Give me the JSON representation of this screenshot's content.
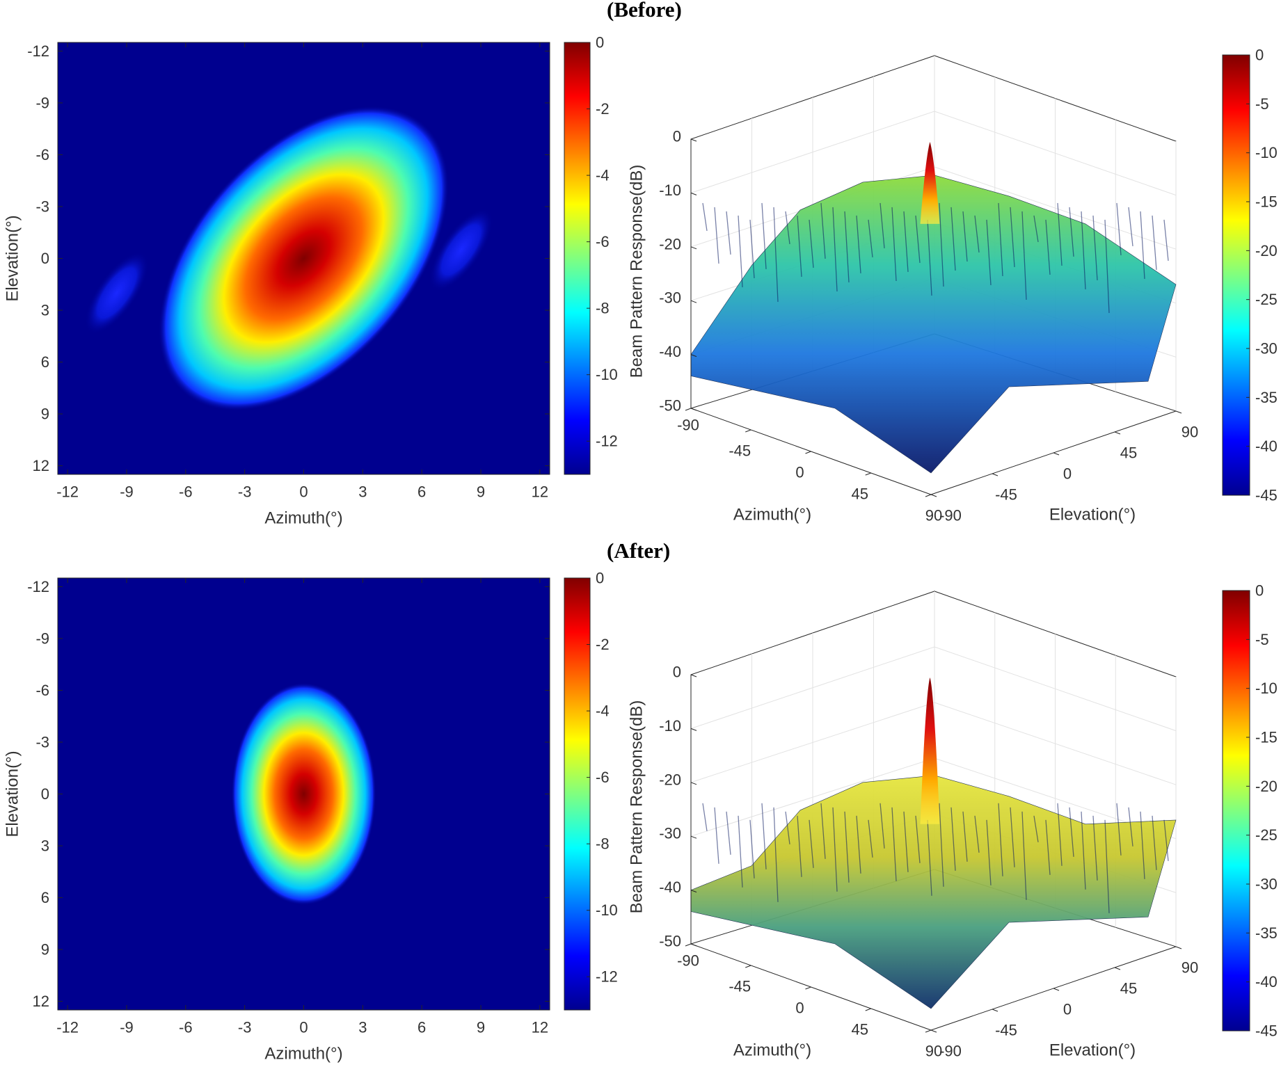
{
  "panels": [
    {
      "title": "(Before)",
      "heatmap": {
        "xlabel": "Azimuth(°)",
        "ylabel": "Elevation(°)",
        "xticks": [
          "-12",
          "-9",
          "-6",
          "-3",
          "0",
          "3",
          "6",
          "9",
          "12"
        ],
        "yticks": [
          "-12",
          "-9",
          "-6",
          "-3",
          "0",
          "3",
          "6",
          "9",
          "12"
        ],
        "colorbar_ticks": [
          "0",
          "-2",
          "-4",
          "-6",
          "-8",
          "-10",
          "-12"
        ]
      },
      "surface": {
        "xlabel": "Azimuth(°)",
        "ylabel": "Elevation(°)",
        "zlabel": "Beam Pattern Response(dB)",
        "xticks": [
          "-90",
          "-45",
          "0",
          "45",
          "90"
        ],
        "yticks": [
          "-90",
          "-45",
          "0",
          "45",
          "90"
        ],
        "zticks": [
          "0",
          "-10",
          "-20",
          "-30",
          "-40",
          "-50"
        ],
        "colorbar_ticks": [
          "0",
          "-5",
          "-10",
          "-15",
          "-20",
          "-25",
          "-30",
          "-35",
          "-40",
          "-45"
        ]
      }
    },
    {
      "title": "(After)",
      "heatmap": {
        "xlabel": "Azimuth(°)",
        "ylabel": "Elevation(°)",
        "xticks": [
          "-12",
          "-9",
          "-6",
          "-3",
          "0",
          "3",
          "6",
          "9",
          "12"
        ],
        "yticks": [
          "-12",
          "-9",
          "-6",
          "-3",
          "0",
          "3",
          "6",
          "9",
          "12"
        ],
        "colorbar_ticks": [
          "0",
          "-2",
          "-4",
          "-6",
          "-8",
          "-10",
          "-12"
        ]
      },
      "surface": {
        "xlabel": "Azimuth(°)",
        "ylabel": "Elevation(°)",
        "zlabel": "Beam Pattern Response(dB)",
        "xticks": [
          "-90",
          "-45",
          "0",
          "45",
          "90"
        ],
        "yticks": [
          "-90",
          "-45",
          "0",
          "45",
          "90"
        ],
        "zticks": [
          "0",
          "-10",
          "-20",
          "-30",
          "-40",
          "-50"
        ],
        "colorbar_ticks": [
          "0",
          "-5",
          "-10",
          "-15",
          "-20",
          "-25",
          "-30",
          "-35",
          "-40",
          "-45"
        ]
      }
    }
  ],
  "chart_data": [
    {
      "type": "heatmap",
      "colormap": "jet",
      "xlabel": "Azimuth(°)",
      "ylabel": "Elevation(°)",
      "xlim": [
        -12.5,
        12.5
      ],
      "ylim": [
        12.5,
        -12.5
      ],
      "clim": [
        -13,
        0
      ],
      "colorbar_ticks": [
        0,
        -2,
        -4,
        -6,
        -8,
        -10,
        -12
      ],
      "mainlobe": {
        "center_az": 0,
        "center_el": 0,
        "peak_db": 0,
        "orientation": "tilted"
      },
      "sidelobes": [
        {
          "center_az": -9.5,
          "center_el": 2,
          "peak_db": -11.5
        },
        {
          "center_az": 8,
          "center_el": -0.5,
          "peak_db": -12
        }
      ]
    },
    {
      "type": "surface",
      "colormap": "jet",
      "xlabel": "Azimuth(°)",
      "ylabel": "Elevation(°)",
      "zlabel": "Beam Pattern Response(dB)",
      "xlim": [
        -90,
        90
      ],
      "ylim": [
        -90,
        90
      ],
      "zlim": [
        -50,
        0
      ],
      "clim": [
        -45,
        0
      ],
      "peak": {
        "azimuth": 0,
        "elevation": 0,
        "value_db": 0
      },
      "sidelobe_level_db": -8
    },
    {
      "type": "heatmap",
      "colormap": "jet",
      "xlabel": "Azimuth(°)",
      "ylabel": "Elevation(°)",
      "xlim": [
        -12.5,
        12.5
      ],
      "ylim": [
        12.5,
        -12.5
      ],
      "clim": [
        -13,
        0
      ],
      "colorbar_ticks": [
        0,
        -2,
        -4,
        -6,
        -8,
        -10,
        -12
      ],
      "mainlobe": {
        "center_az": 0,
        "center_el": 0,
        "peak_db": 0,
        "orientation": "vertical"
      },
      "sidelobes": []
    },
    {
      "type": "surface",
      "colormap": "jet",
      "xlabel": "Azimuth(°)",
      "ylabel": "Elevation(°)",
      "zlabel": "Beam Pattern Response(dB)",
      "xlim": [
        -90,
        90
      ],
      "ylim": [
        -90,
        90
      ],
      "zlim": [
        -50,
        0
      ],
      "clim": [
        -45,
        0
      ],
      "peak": {
        "azimuth": 0,
        "elevation": 0,
        "value_db": 0
      },
      "sidelobe_level_db": -20
    }
  ]
}
